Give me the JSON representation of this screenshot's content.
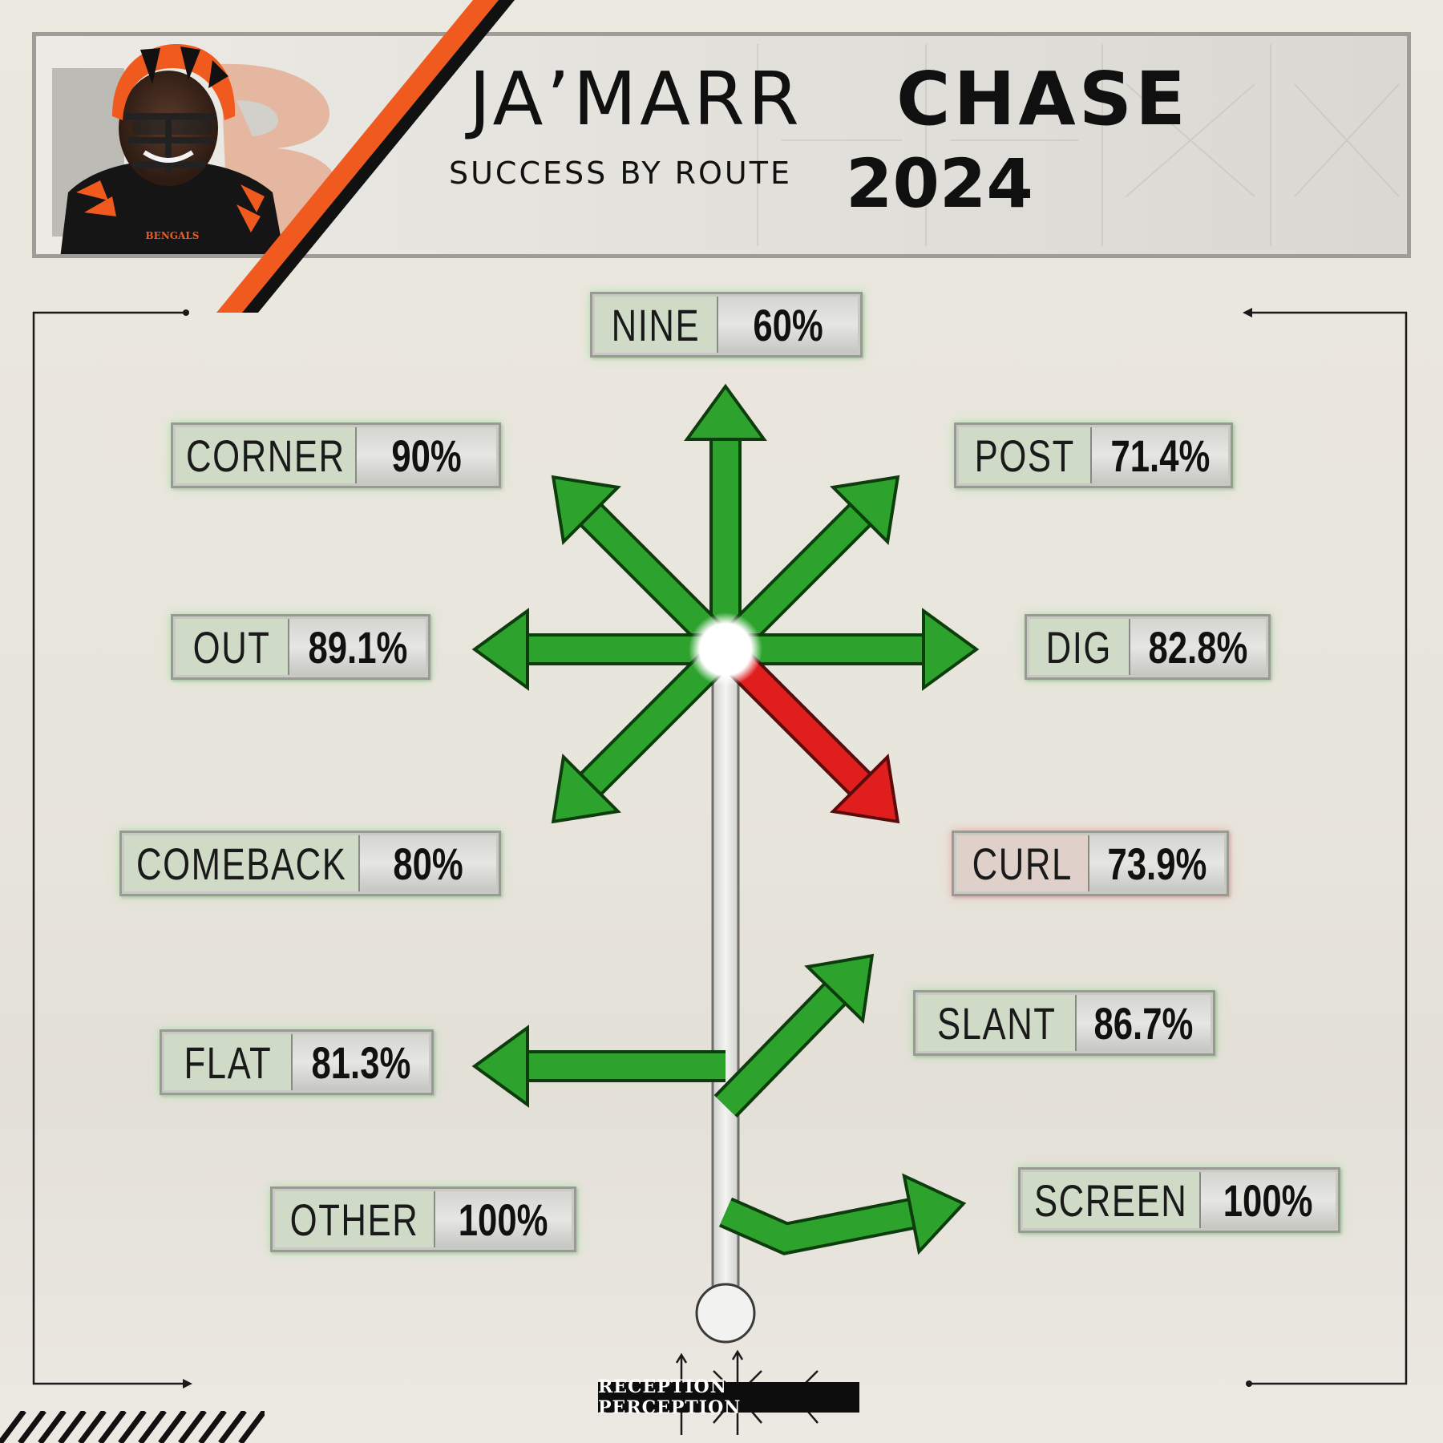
{
  "header": {
    "first_name": "JA’MARR",
    "last_name": "CHASE",
    "subtitle": "SUCCESS BY ROUTE",
    "year": "2024",
    "jersey_text": "BENGALS"
  },
  "colors": {
    "success_arrow": "#2da32d",
    "low_arrow": "#e01e1e",
    "stem": "#e6e6e3",
    "accent_orange": "#f05a1e"
  },
  "chart_data": {
    "type": "route-tree",
    "title": "JA’MARR CHASE",
    "subtitle": "SUCCESS BY ROUTE 2024",
    "routes": [
      {
        "name": "NINE",
        "value": "60%",
        "color": "green"
      },
      {
        "name": "CORNER",
        "value": "90%",
        "color": "green"
      },
      {
        "name": "POST",
        "value": "71.4%",
        "color": "green"
      },
      {
        "name": "OUT",
        "value": "89.1%",
        "color": "green"
      },
      {
        "name": "DIG",
        "value": "82.8%",
        "color": "green"
      },
      {
        "name": "COMEBACK",
        "value": "80%",
        "color": "green"
      },
      {
        "name": "CURL",
        "value": "73.9%",
        "color": "red"
      },
      {
        "name": "SLANT",
        "value": "86.7%",
        "color": "green"
      },
      {
        "name": "FLAT",
        "value": "81.3%",
        "color": "green"
      },
      {
        "name": "OTHER",
        "value": "100%",
        "color": "none"
      },
      {
        "name": "SCREEN",
        "value": "100%",
        "color": "green"
      }
    ]
  },
  "logo": {
    "text": "RECEPTION PERCEPTION"
  }
}
